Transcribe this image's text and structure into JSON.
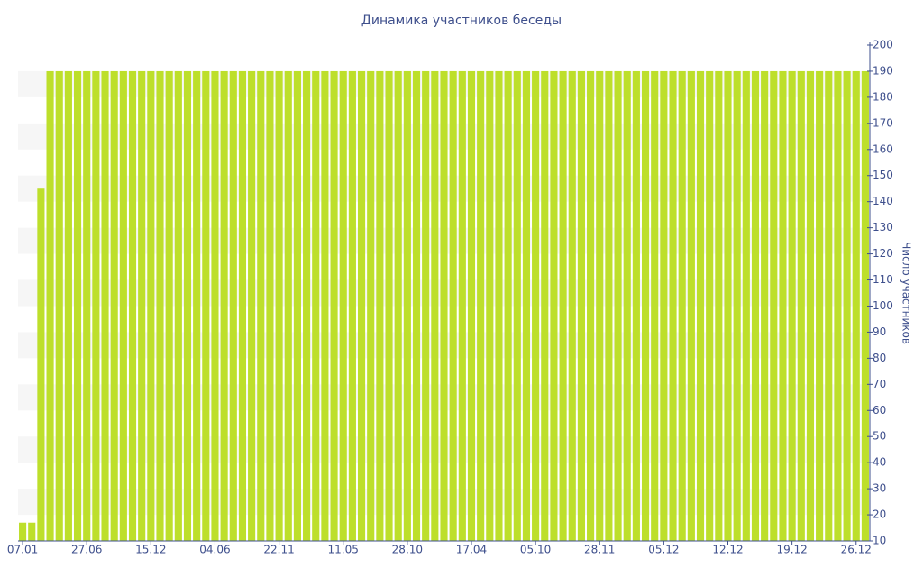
{
  "chart_data": {
    "type": "bar",
    "title": "Динамика участников беседы",
    "y_label": "Число участников",
    "categories": [
      "07.01",
      null,
      null,
      null,
      null,
      null,
      null,
      "27.06",
      null,
      null,
      null,
      null,
      null,
      null,
      "15.12",
      null,
      null,
      null,
      null,
      null,
      null,
      "04.06",
      null,
      null,
      null,
      null,
      null,
      null,
      "22.11",
      null,
      null,
      null,
      null,
      null,
      null,
      "11.05",
      null,
      null,
      null,
      null,
      null,
      null,
      "28.10",
      null,
      null,
      null,
      null,
      null,
      null,
      "17.04",
      null,
      null,
      null,
      null,
      null,
      null,
      "05.10",
      null,
      null,
      null,
      null,
      null,
      null,
      "28.11",
      null,
      null,
      null,
      null,
      null,
      null,
      "05.12",
      null,
      null,
      null,
      null,
      null,
      null,
      "12.12",
      null,
      null,
      null,
      null,
      null,
      null,
      "19.12",
      null,
      null,
      null,
      null,
      null,
      null,
      "26.12",
      null
    ],
    "values": [
      17,
      17,
      145,
      190,
      190,
      190,
      190,
      190,
      190,
      190,
      190,
      190,
      190,
      190,
      190,
      190,
      190,
      190,
      190,
      190,
      190,
      190,
      190,
      190,
      190,
      190,
      190,
      190,
      190,
      190,
      190,
      190,
      190,
      190,
      190,
      190,
      190,
      190,
      190,
      190,
      190,
      190,
      190,
      190,
      190,
      190,
      190,
      190,
      190,
      190,
      190,
      190,
      190,
      190,
      190,
      190,
      190,
      190,
      190,
      190,
      190,
      190,
      190,
      190,
      190,
      190,
      190,
      190,
      190,
      190,
      190,
      190,
      190,
      190,
      190,
      190,
      190,
      190,
      190,
      190,
      190,
      190,
      190,
      190,
      190,
      190,
      190,
      190,
      190,
      190,
      190,
      190,
      190
    ],
    "color": "#bddf2b",
    "ylim": [
      10,
      200
    ],
    "yticks": [
      10,
      20,
      30,
      40,
      50,
      60,
      70,
      80,
      90,
      100,
      110,
      120,
      130,
      140,
      150,
      160,
      170,
      180,
      190,
      200
    ],
    "y_axis_side": "right",
    "grid": true
  }
}
